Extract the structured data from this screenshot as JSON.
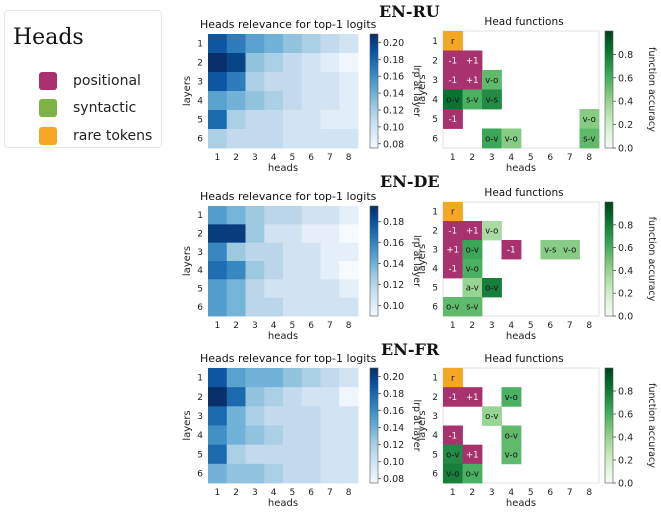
{
  "legend": {
    "title": "Heads",
    "items": [
      {
        "label": "positional",
        "color": "#A8326E"
      },
      {
        "label": "syntactic",
        "color": "#7CB342"
      },
      {
        "label": "rare tokens",
        "color": "#F5A623"
      }
    ]
  },
  "chart_data": [
    {
      "type": "heatmap",
      "panel": "EN-RU",
      "section_title": "EN-RU",
      "title": "Heads relevance for top-1 logits",
      "xlabel": "heads",
      "ylabel": "layers",
      "x_ticks": [
        "1",
        "2",
        "3",
        "4",
        "5",
        "6",
        "7",
        "8"
      ],
      "y_ticks": [
        "1",
        "2",
        "3",
        "4",
        "5",
        "6"
      ],
      "colorbar_label": "lrp at layer",
      "colorbar_ticks": [
        "0.08",
        "0.10",
        "0.12",
        "0.14",
        "0.16",
        "0.18",
        "0.20"
      ],
      "vmin": 0.075,
      "vmax": 0.21,
      "values": [
        [
          0.19,
          0.17,
          0.15,
          0.14,
          0.13,
          0.12,
          0.11,
          0.1
        ],
        [
          0.21,
          0.2,
          0.13,
          0.12,
          0.11,
          0.1,
          0.09,
          0.08
        ],
        [
          0.19,
          0.17,
          0.12,
          0.11,
          0.11,
          0.1,
          0.1,
          0.09
        ],
        [
          0.15,
          0.14,
          0.13,
          0.12,
          0.11,
          0.1,
          0.1,
          0.09
        ],
        [
          0.18,
          0.12,
          0.11,
          0.11,
          0.1,
          0.1,
          0.09,
          0.09
        ],
        [
          0.12,
          0.11,
          0.11,
          0.11,
          0.1,
          0.1,
          0.1,
          0.1
        ]
      ]
    },
    {
      "type": "heatmap",
      "panel": "EN-RU",
      "title": "Head functions",
      "xlabel": "heads",
      "ylabel": "layers",
      "x_ticks": [
        "1",
        "2",
        "3",
        "4",
        "5",
        "6",
        "7",
        "8"
      ],
      "y_ticks": [
        "1",
        "2",
        "3",
        "4",
        "5",
        "6"
      ],
      "colorbar_label": "function accuracy",
      "colorbar_ticks": [
        "0.0",
        "0.2",
        "0.4",
        "0.6",
        "0.8"
      ],
      "vmin": 0,
      "vmax": 1,
      "cells": [
        {
          "layer": 1,
          "head": 1,
          "label": "r",
          "kind": "rare"
        },
        {
          "layer": 2,
          "head": 1,
          "label": "-1",
          "kind": "positional"
        },
        {
          "layer": 2,
          "head": 2,
          "label": "+1",
          "kind": "positional"
        },
        {
          "layer": 3,
          "head": 1,
          "label": "-1",
          "kind": "positional"
        },
        {
          "layer": 3,
          "head": 2,
          "label": "+1",
          "kind": "positional"
        },
        {
          "layer": 3,
          "head": 3,
          "label": "v-o",
          "kind": "syntactic",
          "acc": 0.55
        },
        {
          "layer": 4,
          "head": 1,
          "label": "o-v",
          "kind": "syntactic",
          "acc": 0.85
        },
        {
          "layer": 4,
          "head": 2,
          "label": "s-v",
          "kind": "syntactic",
          "acc": 0.6
        },
        {
          "layer": 4,
          "head": 3,
          "label": "v-s",
          "kind": "syntactic",
          "acc": 0.75
        },
        {
          "layer": 5,
          "head": 1,
          "label": "-1",
          "kind": "positional"
        },
        {
          "layer": 5,
          "head": 8,
          "label": "v-o",
          "kind": "syntactic",
          "acc": 0.45
        },
        {
          "layer": 6,
          "head": 3,
          "label": "o-v",
          "kind": "syntactic",
          "acc": 0.65
        },
        {
          "layer": 6,
          "head": 4,
          "label": "v-o",
          "kind": "syntactic",
          "acc": 0.45
        },
        {
          "layer": 6,
          "head": 8,
          "label": "s-v",
          "kind": "syntactic",
          "acc": 0.55
        }
      ]
    },
    {
      "type": "heatmap",
      "panel": "EN-DE",
      "section_title": "EN-DE",
      "title": "Heads relevance for top-1 logits",
      "xlabel": "heads",
      "ylabel": "layers",
      "x_ticks": [
        "1",
        "2",
        "3",
        "4",
        "5",
        "6",
        "7",
        "8"
      ],
      "y_ticks": [
        "1",
        "2",
        "3",
        "4",
        "5",
        "6"
      ],
      "colorbar_label": "lrp at layer",
      "colorbar_ticks": [
        "0.10",
        "0.12",
        "0.14",
        "0.16",
        "0.18"
      ],
      "vmin": 0.09,
      "vmax": 0.195,
      "values": [
        [
          0.15,
          0.14,
          0.13,
          0.12,
          0.12,
          0.11,
          0.11,
          0.1
        ],
        [
          0.19,
          0.19,
          0.13,
          0.11,
          0.11,
          0.1,
          0.1,
          0.09
        ],
        [
          0.16,
          0.13,
          0.12,
          0.12,
          0.11,
          0.11,
          0.1,
          0.1
        ],
        [
          0.17,
          0.16,
          0.13,
          0.12,
          0.11,
          0.11,
          0.1,
          0.09
        ],
        [
          0.15,
          0.14,
          0.12,
          0.11,
          0.11,
          0.11,
          0.11,
          0.1
        ],
        [
          0.15,
          0.14,
          0.12,
          0.12,
          0.11,
          0.11,
          0.11,
          0.11
        ]
      ]
    },
    {
      "type": "heatmap",
      "panel": "EN-DE",
      "title": "Head functions",
      "xlabel": "heads",
      "ylabel": "layers",
      "x_ticks": [
        "1",
        "2",
        "3",
        "4",
        "5",
        "6",
        "7",
        "8"
      ],
      "y_ticks": [
        "1",
        "2",
        "3",
        "4",
        "5",
        "6"
      ],
      "colorbar_label": "function accuracy",
      "colorbar_ticks": [
        "0.0",
        "0.2",
        "0.4",
        "0.6",
        "0.8"
      ],
      "vmin": 0,
      "vmax": 1,
      "cells": [
        {
          "layer": 1,
          "head": 1,
          "label": "r",
          "kind": "rare"
        },
        {
          "layer": 2,
          "head": 1,
          "label": "-1",
          "kind": "positional"
        },
        {
          "layer": 2,
          "head": 2,
          "label": "+1",
          "kind": "positional"
        },
        {
          "layer": 2,
          "head": 3,
          "label": "v-o",
          "kind": "syntactic",
          "acc": 0.35
        },
        {
          "layer": 3,
          "head": 1,
          "label": "+1",
          "kind": "positional"
        },
        {
          "layer": 3,
          "head": 2,
          "label": "o-v",
          "kind": "syntactic",
          "acc": 0.65
        },
        {
          "layer": 3,
          "head": 4,
          "label": "-1",
          "kind": "positional"
        },
        {
          "layer": 3,
          "head": 6,
          "label": "v-s",
          "kind": "syntactic",
          "acc": 0.45
        },
        {
          "layer": 3,
          "head": 7,
          "label": "v-o",
          "kind": "syntactic",
          "acc": 0.45
        },
        {
          "layer": 4,
          "head": 1,
          "label": "-1",
          "kind": "positional"
        },
        {
          "layer": 4,
          "head": 2,
          "label": "v-o",
          "kind": "syntactic",
          "acc": 0.6
        },
        {
          "layer": 5,
          "head": 2,
          "label": "a-v",
          "kind": "syntactic",
          "acc": 0.4
        },
        {
          "layer": 5,
          "head": 3,
          "label": "o-v",
          "kind": "syntactic",
          "acc": 0.8
        },
        {
          "layer": 6,
          "head": 1,
          "label": "o-v",
          "kind": "syntactic",
          "acc": 0.55
        },
        {
          "layer": 6,
          "head": 2,
          "label": "s-v",
          "kind": "syntactic",
          "acc": 0.55
        }
      ]
    },
    {
      "type": "heatmap",
      "panel": "EN-FR",
      "section_title": "EN-FR",
      "title": "Heads relevance for top-1 logits",
      "xlabel": "heads",
      "ylabel": "layers",
      "x_ticks": [
        "1",
        "2",
        "3",
        "4",
        "5",
        "6",
        "7",
        "8"
      ],
      "y_ticks": [
        "1",
        "2",
        "3",
        "4",
        "5",
        "6"
      ],
      "colorbar_label": "lrp at layer",
      "colorbar_ticks": [
        "0.08",
        "0.10",
        "0.12",
        "0.14",
        "0.16",
        "0.18",
        "0.20"
      ],
      "vmin": 0.075,
      "vmax": 0.21,
      "values": [
        [
          0.19,
          0.15,
          0.14,
          0.14,
          0.13,
          0.12,
          0.11,
          0.1
        ],
        [
          0.21,
          0.18,
          0.13,
          0.12,
          0.11,
          0.1,
          0.1,
          0.08
        ],
        [
          0.18,
          0.14,
          0.12,
          0.11,
          0.11,
          0.11,
          0.1,
          0.1
        ],
        [
          0.16,
          0.14,
          0.13,
          0.12,
          0.11,
          0.11,
          0.1,
          0.1
        ],
        [
          0.18,
          0.12,
          0.11,
          0.11,
          0.11,
          0.11,
          0.1,
          0.1
        ],
        [
          0.14,
          0.13,
          0.13,
          0.12,
          0.11,
          0.11,
          0.1,
          0.1
        ]
      ]
    },
    {
      "type": "heatmap",
      "panel": "EN-FR",
      "title": "Head functions",
      "xlabel": "heads",
      "ylabel": "layers",
      "x_ticks": [
        "1",
        "2",
        "3",
        "4",
        "5",
        "6",
        "7",
        "8"
      ],
      "y_ticks": [
        "1",
        "2",
        "3",
        "4",
        "5",
        "6"
      ],
      "colorbar_label": "function accuracy",
      "colorbar_ticks": [
        "0.0",
        "0.2",
        "0.4",
        "0.6",
        "0.8"
      ],
      "vmin": 0,
      "vmax": 1,
      "cells": [
        {
          "layer": 1,
          "head": 1,
          "label": "r",
          "kind": "rare"
        },
        {
          "layer": 2,
          "head": 1,
          "label": "-1",
          "kind": "positional"
        },
        {
          "layer": 2,
          "head": 2,
          "label": "+1",
          "kind": "positional"
        },
        {
          "layer": 2,
          "head": 4,
          "label": "v-o",
          "kind": "syntactic",
          "acc": 0.6
        },
        {
          "layer": 3,
          "head": 3,
          "label": "o-v",
          "kind": "syntactic",
          "acc": 0.4
        },
        {
          "layer": 4,
          "head": 1,
          "label": "-1",
          "kind": "positional"
        },
        {
          "layer": 4,
          "head": 4,
          "label": "o-v",
          "kind": "syntactic",
          "acc": 0.55
        },
        {
          "layer": 5,
          "head": 1,
          "label": "o-v",
          "kind": "syntactic",
          "acc": 0.75
        },
        {
          "layer": 5,
          "head": 2,
          "label": "+1",
          "kind": "positional"
        },
        {
          "layer": 5,
          "head": 4,
          "label": "v-o",
          "kind": "syntactic",
          "acc": 0.55
        },
        {
          "layer": 6,
          "head": 1,
          "label": "v-o",
          "kind": "syntactic",
          "acc": 0.8
        },
        {
          "layer": 6,
          "head": 2,
          "label": "o-v",
          "kind": "syntactic",
          "acc": 0.6
        }
      ]
    }
  ]
}
